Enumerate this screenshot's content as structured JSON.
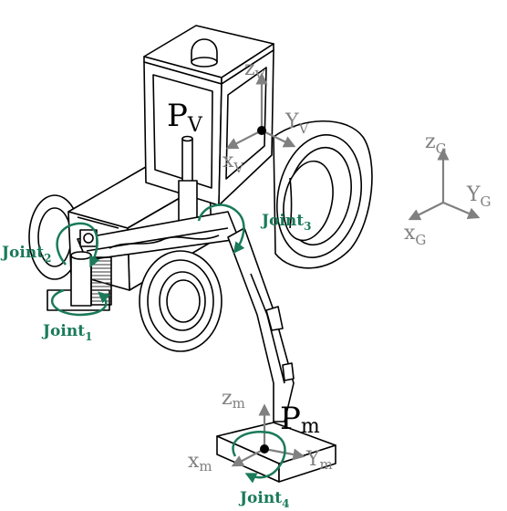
{
  "colors": {
    "line": "#000000",
    "axis": "#808080",
    "joint": "#1a7a5a",
    "hatch": "#333333"
  },
  "labels": {
    "vehicle_point": {
      "main": "P",
      "sub": "V"
    },
    "tool_point": {
      "main": "P",
      "sub": "m"
    },
    "vehicle_frame": {
      "z": {
        "main": "z",
        "sub": "V"
      },
      "y": {
        "main": "Y",
        "sub": "V"
      },
      "x": {
        "main": "x",
        "sub": "V"
      }
    },
    "global_frame": {
      "z": {
        "main": "z",
        "sub": "G"
      },
      "y": {
        "main": "Y",
        "sub": "G"
      },
      "x": {
        "main": "x",
        "sub": "G"
      }
    },
    "tool_frame": {
      "z": {
        "main": "z",
        "sub": "m"
      },
      "y": {
        "main": "Y",
        "sub": "m"
      },
      "x": {
        "main": "x",
        "sub": "m"
      }
    },
    "joints": [
      {
        "main": "Joint",
        "sub": "1"
      },
      {
        "main": "Joint",
        "sub": "2"
      },
      {
        "main": "Joint",
        "sub": "3"
      },
      {
        "main": "Joint",
        "sub": "4"
      }
    ]
  }
}
